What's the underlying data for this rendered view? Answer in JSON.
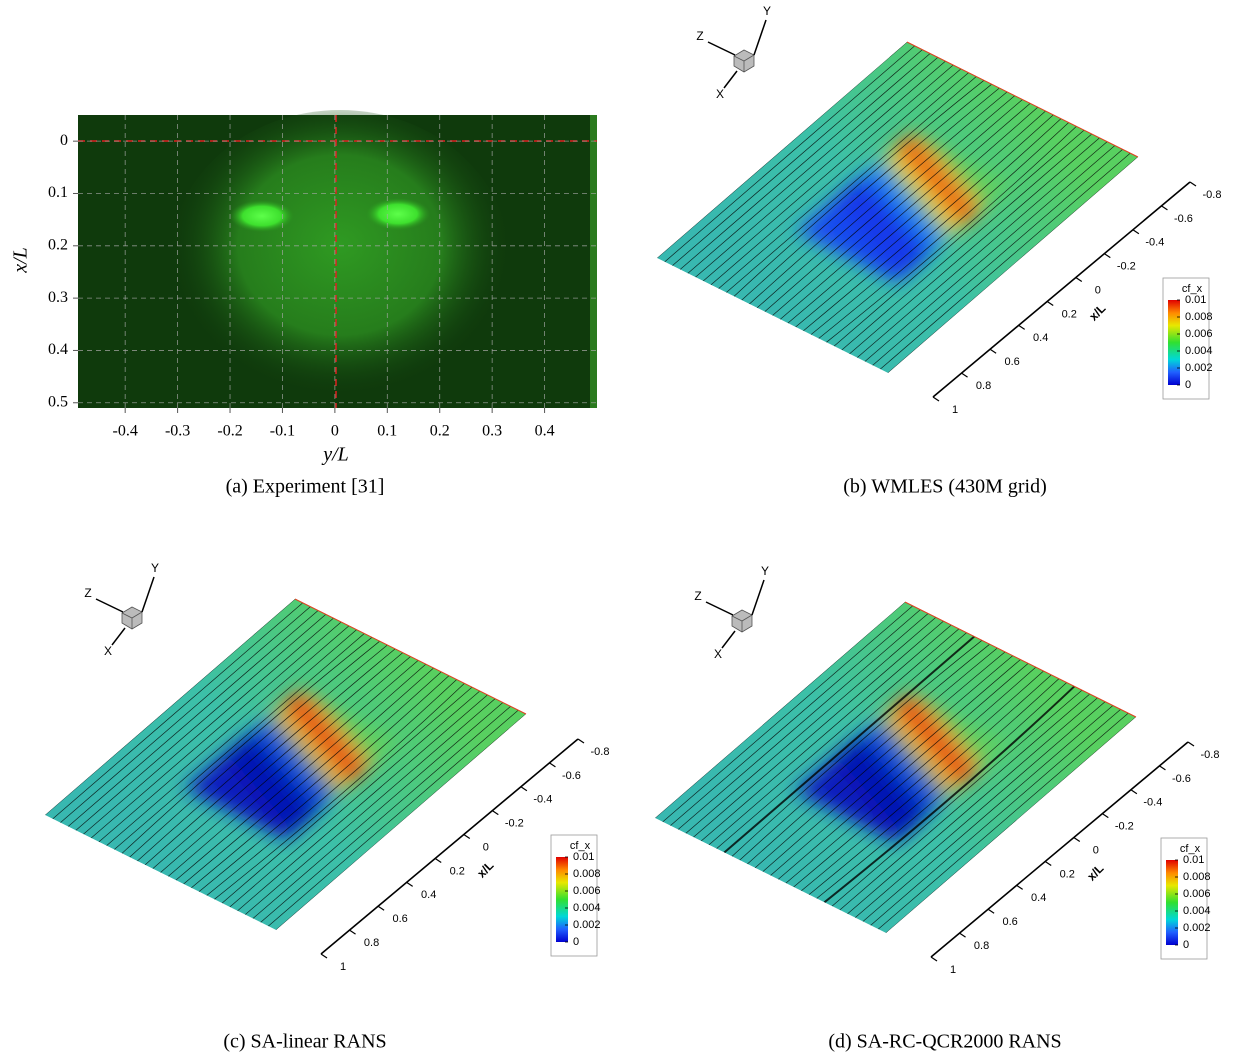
{
  "panels": [
    {
      "caption": "(a) Experiment [31]",
      "x_label": "y/L",
      "y_label": "x/L",
      "xlim": [
        -0.49,
        0.5
      ],
      "ylim": [
        -0.05,
        0.51
      ],
      "xticks": [
        -0.4,
        -0.3,
        -0.2,
        -0.1,
        0,
        0.1,
        0.2,
        0.3,
        0.4
      ],
      "yticks": [
        0,
        0.1,
        0.2,
        0.3,
        0.4,
        0.5
      ]
    },
    {
      "caption": "(b) WMLES (430M grid)",
      "triad": [
        "Z",
        "Y",
        "X"
      ],
      "axis_label": "x/L",
      "axis_ticks": [
        -0.8,
        -0.6,
        -0.4,
        -0.2,
        0,
        0.2,
        0.4,
        0.6,
        0.8,
        1
      ],
      "colorbar": {
        "title": "cf_x",
        "ticks": [
          0.01,
          0.008,
          0.006,
          0.004,
          0.002,
          0
        ]
      }
    },
    {
      "caption": "(c) SA-linear RANS",
      "triad": [
        "Z",
        "Y",
        "X"
      ],
      "axis_label": "x/L",
      "axis_ticks": [
        -0.8,
        -0.6,
        -0.4,
        -0.2,
        0,
        0.2,
        0.4,
        0.6,
        0.8,
        1
      ],
      "colorbar": {
        "title": "cf_x",
        "ticks": [
          0.01,
          0.008,
          0.006,
          0.004,
          0.002,
          0
        ]
      }
    },
    {
      "caption": "(d) SA-RC-QCR2000 RANS",
      "triad": [
        "Z",
        "Y",
        "X"
      ],
      "axis_label": "x/L",
      "axis_ticks": [
        -0.8,
        -0.6,
        -0.4,
        -0.2,
        0,
        0.2,
        0.4,
        0.6,
        0.8,
        1
      ],
      "colorbar": {
        "title": "cf_x",
        "ticks": [
          0.01,
          0.008,
          0.006,
          0.004,
          0.002,
          0
        ]
      }
    }
  ]
}
